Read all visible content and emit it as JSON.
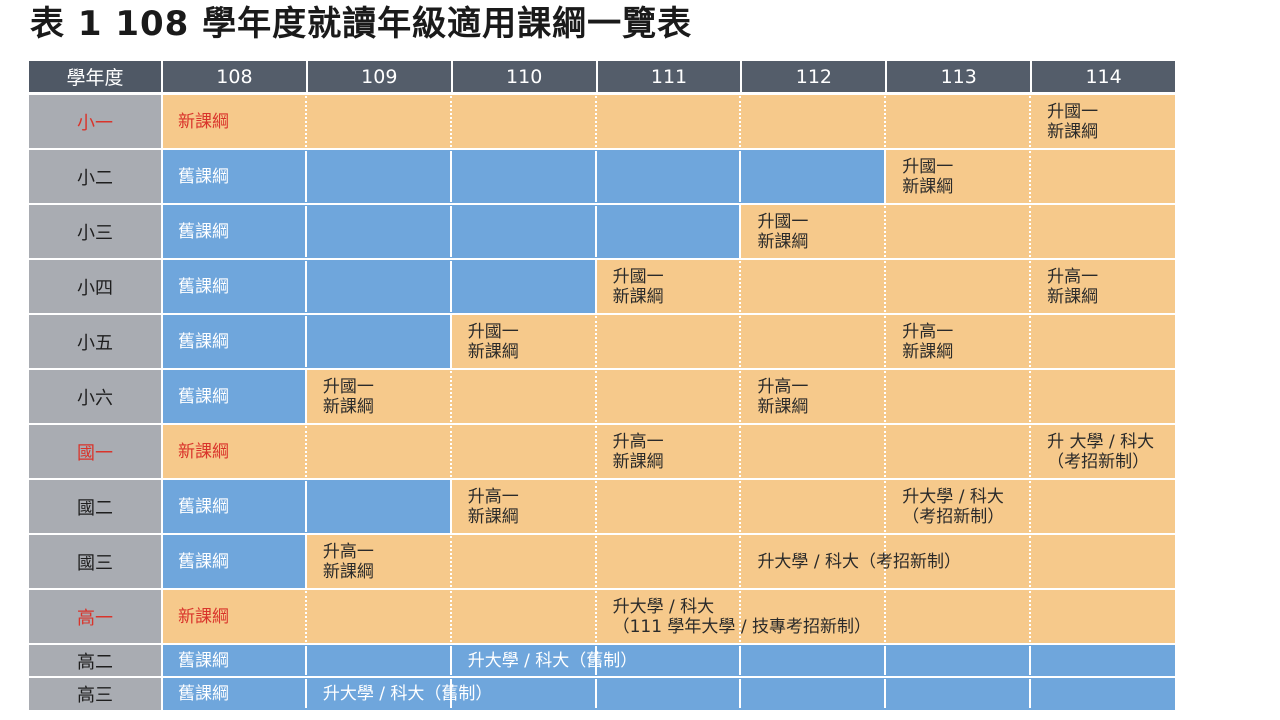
{
  "title": "表 1  108 學年度就讀年級適用課綱一覽表",
  "header_label": "學年度",
  "years": [
    "108",
    "109",
    "110",
    "111",
    "112",
    "113",
    "114"
  ],
  "colors": {
    "new": "#f6c98b",
    "old": "#6fa6dc",
    "header": "#545d6a",
    "grade": "#a9acb2",
    "accent": "#d9342b"
  },
  "rows": [
    {
      "grade": "小一",
      "new_entry": true,
      "segments": [
        {
          "start": 0,
          "end": 7,
          "kind": "new",
          "labels": [
            {
              "col": 0,
              "lines": [
                "新課綱"
              ],
              "style": "red"
            },
            {
              "col": 6,
              "lines": [
                "升國一",
                "新課綱"
              ]
            }
          ]
        }
      ]
    },
    {
      "grade": "小二",
      "segments": [
        {
          "start": 0,
          "end": 5,
          "kind": "old",
          "labels": [
            {
              "col": 0,
              "lines": [
                "舊課綱"
              ],
              "style": "white"
            }
          ]
        },
        {
          "start": 5,
          "end": 7,
          "kind": "new",
          "labels": [
            {
              "col": 5,
              "lines": [
                "升國一",
                "新課綱"
              ]
            }
          ]
        }
      ]
    },
    {
      "grade": "小三",
      "segments": [
        {
          "start": 0,
          "end": 4,
          "kind": "old",
          "labels": [
            {
              "col": 0,
              "lines": [
                "舊課綱"
              ],
              "style": "white"
            }
          ]
        },
        {
          "start": 4,
          "end": 7,
          "kind": "new",
          "labels": [
            {
              "col": 4,
              "lines": [
                "升國一",
                "新課綱"
              ]
            }
          ]
        }
      ]
    },
    {
      "grade": "小四",
      "segments": [
        {
          "start": 0,
          "end": 3,
          "kind": "old",
          "labels": [
            {
              "col": 0,
              "lines": [
                "舊課綱"
              ],
              "style": "white"
            }
          ]
        },
        {
          "start": 3,
          "end": 7,
          "kind": "new",
          "labels": [
            {
              "col": 3,
              "lines": [
                "升國一",
                "新課綱"
              ]
            },
            {
              "col": 6,
              "lines": [
                "升高一",
                "新課綱"
              ]
            }
          ]
        }
      ]
    },
    {
      "grade": "小五",
      "segments": [
        {
          "start": 0,
          "end": 2,
          "kind": "old",
          "labels": [
            {
              "col": 0,
              "lines": [
                "舊課綱"
              ],
              "style": "white"
            }
          ]
        },
        {
          "start": 2,
          "end": 7,
          "kind": "new",
          "labels": [
            {
              "col": 2,
              "lines": [
                "升國一",
                "新課綱"
              ]
            },
            {
              "col": 5,
              "lines": [
                "升高一",
                "新課綱"
              ]
            }
          ]
        }
      ]
    },
    {
      "grade": "小六",
      "segments": [
        {
          "start": 0,
          "end": 1,
          "kind": "old",
          "labels": [
            {
              "col": 0,
              "lines": [
                "舊課綱"
              ],
              "style": "white"
            }
          ]
        },
        {
          "start": 1,
          "end": 7,
          "kind": "new",
          "labels": [
            {
              "col": 1,
              "lines": [
                "升國一",
                "新課綱"
              ]
            },
            {
              "col": 4,
              "lines": [
                "升高一",
                "新課綱"
              ]
            }
          ]
        }
      ]
    },
    {
      "grade": "國一",
      "new_entry": true,
      "segments": [
        {
          "start": 0,
          "end": 7,
          "kind": "new",
          "labels": [
            {
              "col": 0,
              "lines": [
                "新課綱"
              ],
              "style": "red"
            },
            {
              "col": 3,
              "lines": [
                "升高一",
                "新課綱"
              ]
            },
            {
              "col": 6,
              "lines": [
                "升 大學 / 科大",
                "（考招新制）"
              ]
            }
          ]
        }
      ]
    },
    {
      "grade": "國二",
      "segments": [
        {
          "start": 0,
          "end": 2,
          "kind": "old",
          "labels": [
            {
              "col": 0,
              "lines": [
                "舊課綱"
              ],
              "style": "white"
            }
          ]
        },
        {
          "start": 2,
          "end": 7,
          "kind": "new",
          "labels": [
            {
              "col": 2,
              "lines": [
                "升高一",
                "新課綱"
              ]
            },
            {
              "col": 5,
              "lines": [
                "升大學 / 科大",
                "（考招新制）"
              ]
            }
          ]
        }
      ]
    },
    {
      "grade": "國三",
      "segments": [
        {
          "start": 0,
          "end": 1,
          "kind": "old",
          "labels": [
            {
              "col": 0,
              "lines": [
                "舊課綱"
              ],
              "style": "white"
            }
          ]
        },
        {
          "start": 1,
          "end": 7,
          "kind": "new",
          "labels": [
            {
              "col": 1,
              "lines": [
                "升高一",
                "新課綱"
              ]
            },
            {
              "col": 4,
              "lines": [
                "升大學 / 科大（考招新制）"
              ]
            }
          ]
        }
      ]
    },
    {
      "grade": "高一",
      "new_entry": true,
      "segments": [
        {
          "start": 0,
          "end": 7,
          "kind": "new",
          "labels": [
            {
              "col": 0,
              "lines": [
                "新課綱"
              ],
              "style": "red"
            },
            {
              "col": 3,
              "lines": [
                "升大學 / 科大",
                "（111 學年大學 / 技專考招新制）"
              ]
            }
          ]
        }
      ]
    },
    {
      "grade": "高二",
      "segments": [
        {
          "start": 0,
          "end": 7,
          "kind": "old",
          "labels": [
            {
              "col": 0,
              "lines": [
                "舊課綱"
              ],
              "style": "white"
            },
            {
              "col": 2,
              "lines": [
                "升大學 / 科大（舊制）"
              ],
              "style": "white"
            }
          ]
        }
      ]
    },
    {
      "grade": "高三",
      "segments": [
        {
          "start": 0,
          "end": 7,
          "kind": "old",
          "labels": [
            {
              "col": 0,
              "lines": [
                "舊課綱"
              ],
              "style": "white"
            },
            {
              "col": 1,
              "lines": [
                "升大學 / 科大（舊制）"
              ],
              "style": "white"
            }
          ]
        }
      ]
    }
  ]
}
